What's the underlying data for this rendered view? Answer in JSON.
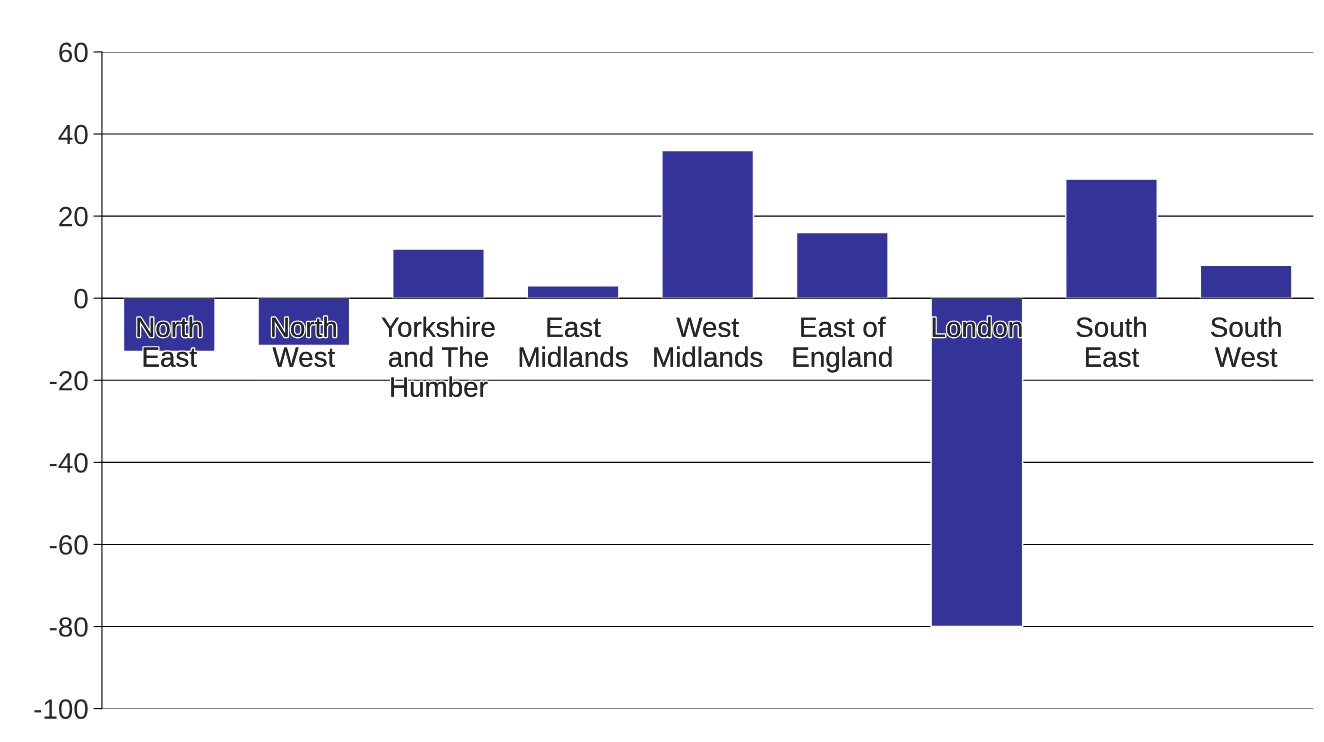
{
  "chart_data": {
    "type": "bar",
    "categories": [
      "North East",
      "North West",
      "Yorkshire and The Humber",
      "East Midlands",
      "West Midlands",
      "East of England",
      "London",
      "South East",
      "South West"
    ],
    "values": [
      -13,
      -11.5,
      12,
      3,
      36,
      16,
      -80,
      29,
      8
    ],
    "color": "#333399",
    "ylim": [
      -100,
      60
    ],
    "yticks": [
      -100,
      -80,
      -60,
      -40,
      -20,
      0,
      20,
      40,
      60
    ],
    "grid": "y",
    "legend": false
  }
}
